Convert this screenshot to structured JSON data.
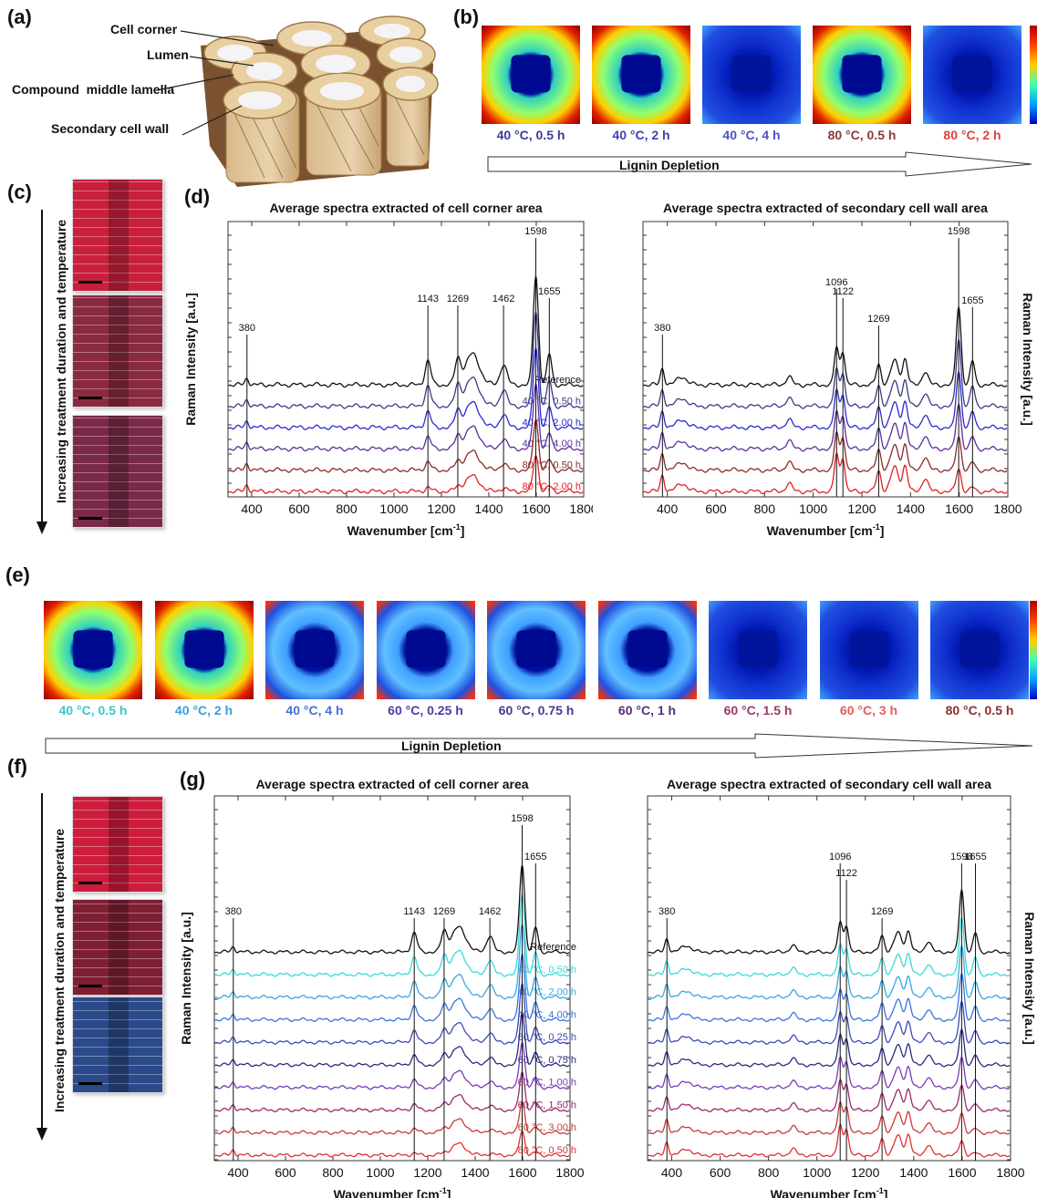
{
  "panels": {
    "a": "(a)",
    "b": "(b)",
    "c": "(c)",
    "d": "(d)",
    "e": "(e)",
    "f": "(f)",
    "g": "(g)"
  },
  "schematic": {
    "labels": [
      "Cell corner",
      "Lumen",
      "Compound  middle lamella",
      "Secondary cell wall"
    ]
  },
  "maps_b": {
    "captions": [
      "40 °C, 0.5 h",
      "40 °C, 2 h",
      "40 °C, 4 h",
      "80 °C, 0.5 h",
      "80 °C, 2 h"
    ],
    "caption_colors": [
      "#3b3b9a",
      "#4040b8",
      "#5050c8",
      "#8b3a3a",
      "#e04040"
    ],
    "styles": [
      "rich",
      "rich",
      "depleted",
      "rich",
      "depleted"
    ]
  },
  "maps_e": {
    "captions": [
      "40 °C, 0.5 h",
      "40 °C, 2 h",
      "40 °C, 4 h",
      "60 °C, 0.25 h",
      "60 °C, 0.75 h",
      "60 °C, 1 h",
      "60 °C, 1.5 h",
      "60 °C, 3 h",
      "80 °C, 0.5 h"
    ],
    "caption_colors": [
      "#39c8c8",
      "#3aa0d8",
      "#4a6fd8",
      "#4a3ea8",
      "#4a3a8c",
      "#5a2f7a",
      "#9a3a6a",
      "#e06060",
      "#8b2f2f"
    ],
    "styles": [
      "rich",
      "rich",
      "mid",
      "mid",
      "mid",
      "mid",
      "depleted",
      "depleted",
      "depleted"
    ]
  },
  "arrow_label": "Lignin Depletion",
  "side_label": "Increasing treatment duration and temperature",
  "samples_c": [
    "#c8203c",
    "#8a2a40",
    "#7a2a48"
  ],
  "samples_f": [
    "#cc1d3c",
    "#7e1f35",
    "#2a4a8a"
  ],
  "spectra_common": {
    "ylabel": "Raman Intensity [a.u.]",
    "xlabel": "Wavenumber [cm",
    "xlabel_sup": "-1",
    "xlabel_end": "]"
  },
  "chart_data": [
    {
      "id": "d-left",
      "type": "line",
      "title": "Average spectra extracted of cell corner area",
      "xlabel": "Wavenumber [cm-1]",
      "ylabel": "Raman Intensity [a.u.]",
      "xlim": [
        300,
        1800
      ],
      "xticks": [
        400,
        600,
        800,
        1000,
        1200,
        1400,
        1600,
        1800
      ],
      "peaks": [
        380,
        1143,
        1269,
        1462,
        1598,
        1655
      ],
      "series": [
        {
          "name": "Reference",
          "color": "#111111"
        },
        {
          "name": "40 °C, 0.50 h",
          "color": "#3a3a8a"
        },
        {
          "name": "40 °C, 2.00 h",
          "color": "#2a2ad0"
        },
        {
          "name": "40 °C, 4.00 h",
          "color": "#5a2f9a"
        },
        {
          "name": "80 °C, 0.50 h",
          "color": "#8b2a2a"
        },
        {
          "name": "80 °C, 2.00 h",
          "color": "#e02020"
        }
      ]
    },
    {
      "id": "d-right",
      "type": "line",
      "title": "Average spectra extracted of secondary cell wall area",
      "xlabel": "Wavenumber [cm-1]",
      "ylabel": "Raman Intensity [a.u.]",
      "xlim": [
        300,
        1800
      ],
      "xticks": [
        400,
        600,
        800,
        1000,
        1200,
        1400,
        1600,
        1800
      ],
      "peaks": [
        380,
        1096,
        1122,
        1269,
        1598,
        1655
      ],
      "series": [
        {
          "name": "Reference",
          "color": "#111111"
        },
        {
          "name": "40 °C, 0.50 h",
          "color": "#3a3a8a"
        },
        {
          "name": "40 °C, 2.00 h",
          "color": "#2a2ad0"
        },
        {
          "name": "40 °C, 4.00 h",
          "color": "#5a2f9a"
        },
        {
          "name": "80 °C, 0.50 h",
          "color": "#8b2a2a"
        },
        {
          "name": "80 °C, 2.00 h",
          "color": "#e02020"
        }
      ]
    },
    {
      "id": "g-left",
      "type": "line",
      "title": "Average spectra extracted of cell corner area",
      "xlabel": "Wavenumber [cm-1]",
      "ylabel": "Raman Intensity [a.u.]",
      "xlim": [
        300,
        1800
      ],
      "xticks": [
        400,
        600,
        800,
        1000,
        1200,
        1400,
        1600,
        1800
      ],
      "peaks": [
        380,
        1143,
        1269,
        1462,
        1598,
        1655
      ],
      "series": [
        {
          "name": "Reference",
          "color": "#111111"
        },
        {
          "name": "40 °C, 0.50 h",
          "color": "#3ad8d8"
        },
        {
          "name": "40 °C, 2.00 h",
          "color": "#35a8e0"
        },
        {
          "name": "40 °C, 4.00 h",
          "color": "#3a72e0"
        },
        {
          "name": "60 °C, 0.25 h",
          "color": "#3a4ab8"
        },
        {
          "name": "60 °C, 0.75 h",
          "color": "#2a2a80"
        },
        {
          "name": "60 °C, 1.00 h",
          "color": "#7a3ab8"
        },
        {
          "name": "60 °C, 1.50 h",
          "color": "#9a2a6a"
        },
        {
          "name": "60 °C, 3.00 h",
          "color": "#c83a3a"
        },
        {
          "name": "80 °C, 0.50 h",
          "color": "#e03030"
        }
      ]
    },
    {
      "id": "g-right",
      "type": "line",
      "title": "Average spectra extracted of secondary cell wall area",
      "xlabel": "Wavenumber [cm-1]",
      "ylabel": "Raman Intensity [a.u.]",
      "xlim": [
        300,
        1800
      ],
      "xticks": [
        400,
        600,
        800,
        1000,
        1200,
        1400,
        1600,
        1800
      ],
      "peaks": [
        380,
        1096,
        1122,
        1269,
        1598,
        1655
      ],
      "series": [
        {
          "name": "Reference",
          "color": "#111111"
        },
        {
          "name": "40 °C, 0.50 h",
          "color": "#3ad8d8"
        },
        {
          "name": "40 °C, 2.00 h",
          "color": "#35a8e0"
        },
        {
          "name": "40 °C, 4.00 h",
          "color": "#3a72e0"
        },
        {
          "name": "60 °C, 0.25 h",
          "color": "#3a4ab8"
        },
        {
          "name": "60 °C, 0.75 h",
          "color": "#2a2a80"
        },
        {
          "name": "60 °C, 1.00 h",
          "color": "#7a3ab8"
        },
        {
          "name": "60 °C, 1.50 h",
          "color": "#9a2a6a"
        },
        {
          "name": "60 °C, 3.00 h",
          "color": "#c83a3a"
        },
        {
          "name": "80 °C, 0.50 h",
          "color": "#e03030"
        }
      ]
    }
  ]
}
